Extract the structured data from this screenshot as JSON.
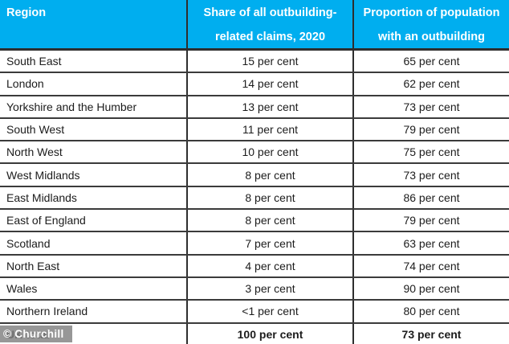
{
  "colors": {
    "header_bg": "#00AEEF",
    "header_text": "#FFFFFF",
    "border_dark": "#2E2E2E",
    "border_row": "#3B3B3B",
    "body_text": "#1C1C1C",
    "watermark_bg": "rgba(128,128,128,0.82)",
    "watermark_text": "#FFFFFF"
  },
  "table": {
    "columns": [
      {
        "id": "region",
        "lines": [
          "Region",
          ""
        ]
      },
      {
        "id": "share",
        "lines": [
          "Share of all outbuilding-",
          "related claims, 2020"
        ]
      },
      {
        "id": "proportion",
        "lines": [
          "Proportion of population",
          "with an outbuilding"
        ]
      }
    ],
    "rows": [
      {
        "region": "South East",
        "share": "15 per cent",
        "proportion": "65 per cent",
        "bold": false
      },
      {
        "region": "London",
        "share": "14 per cent",
        "proportion": "62 per cent",
        "bold": false
      },
      {
        "region": "Yorkshire and the Humber",
        "share": "13 per cent",
        "proportion": "73 per cent",
        "bold": false
      },
      {
        "region": "South West",
        "share": "11 per cent",
        "proportion": "79 per cent",
        "bold": false
      },
      {
        "region": "North West",
        "share": "10 per cent",
        "proportion": "75 per cent",
        "bold": false
      },
      {
        "region": "West Midlands",
        "share": "8 per cent",
        "proportion": "73 per cent",
        "bold": false
      },
      {
        "region": "East Midlands",
        "share": "8 per cent",
        "proportion": "86 per cent",
        "bold": false
      },
      {
        "region": "East of England",
        "share": "8 per cent",
        "proportion": "79 per cent",
        "bold": false
      },
      {
        "region": "Scotland",
        "share": "7 per cent",
        "proportion": "63 per cent",
        "bold": false
      },
      {
        "region": "North East",
        "share": "4 per cent",
        "proportion": "74 per cent",
        "bold": false
      },
      {
        "region": "Wales",
        "share": "3 per cent",
        "proportion": "90 per cent",
        "bold": false
      },
      {
        "region": "Northern Ireland",
        "share": "<1 per cent",
        "proportion": "80 per cent",
        "bold": false
      },
      {
        "region": "UK total",
        "share": "100 per cent",
        "proportion": "73 per cent",
        "bold": true
      }
    ]
  },
  "watermark": {
    "text": "© Churchill"
  },
  "chart_data": {
    "type": "table",
    "title": "",
    "columns": [
      "Region",
      "Share of all outbuilding-related claims, 2020",
      "Proportion of population with an outbuilding"
    ],
    "rows": [
      [
        "South East",
        "15 per cent",
        "65 per cent"
      ],
      [
        "London",
        "14 per cent",
        "62 per cent"
      ],
      [
        "Yorkshire and the Humber",
        "13 per cent",
        "73 per cent"
      ],
      [
        "South West",
        "11 per cent",
        "79 per cent"
      ],
      [
        "North West",
        "10 per cent",
        "75 per cent"
      ],
      [
        "West Midlands",
        "8 per cent",
        "73 per cent"
      ],
      [
        "East Midlands",
        "8 per cent",
        "86 per cent"
      ],
      [
        "East of England",
        "8 per cent",
        "79 per cent"
      ],
      [
        "Scotland",
        "7 per cent",
        "63 per cent"
      ],
      [
        "North East",
        "4 per cent",
        "74 per cent"
      ],
      [
        "Wales",
        "3 per cent",
        "90 per cent"
      ],
      [
        "Northern Ireland",
        "<1 per cent",
        "80 per cent"
      ],
      [
        "UK total",
        "100 per cent",
        "73 per cent"
      ]
    ],
    "source_watermark": "© Churchill"
  }
}
